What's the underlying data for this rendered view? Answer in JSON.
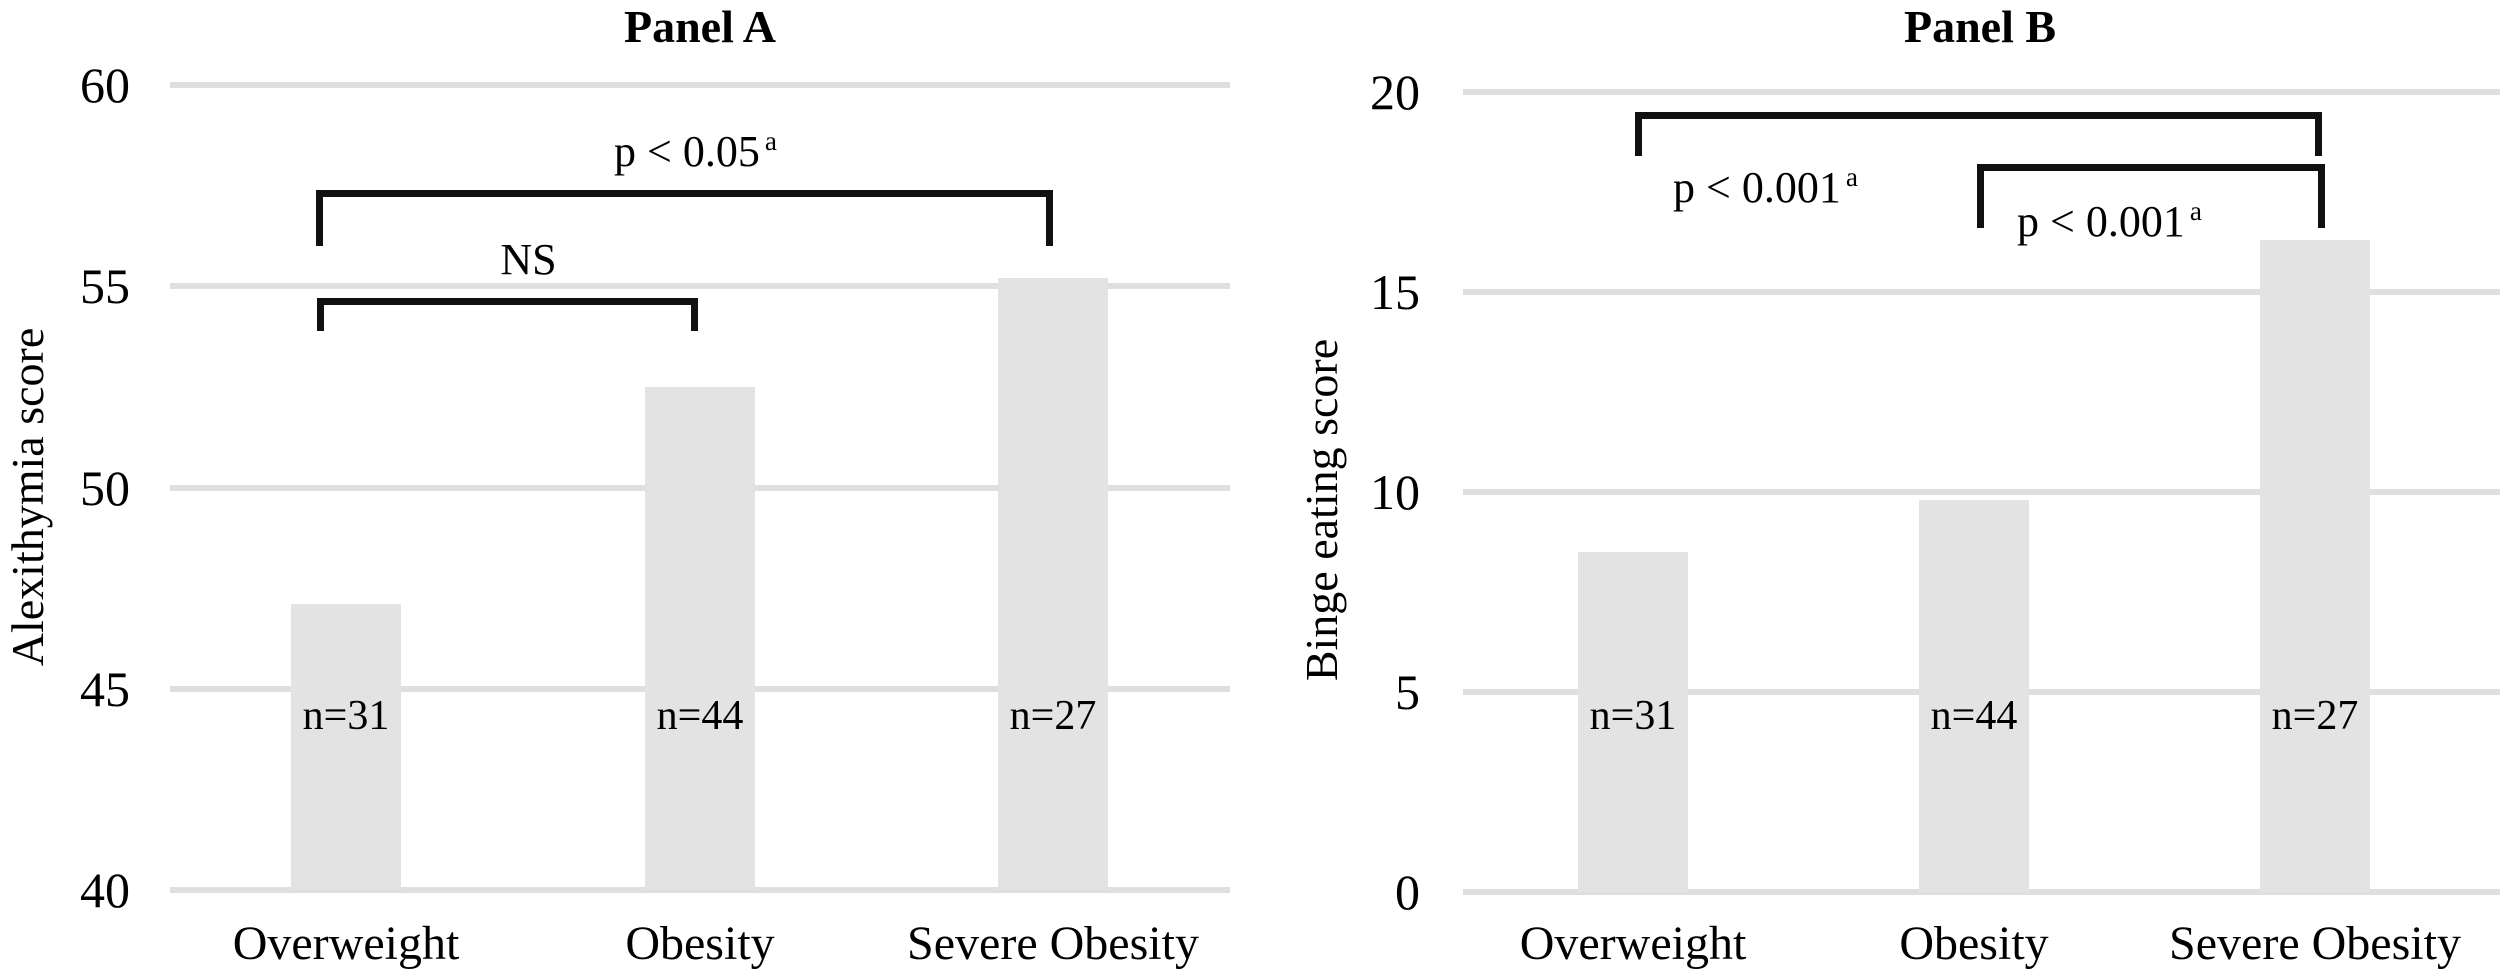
{
  "figure": {
    "background": "#ffffff"
  },
  "colors": {
    "bar_fill": "#e3e3e3",
    "gridline": "#dfdfdf",
    "bracket_line": "#111111",
    "text": "#000000"
  },
  "chart_data": {
    "type": "bar",
    "grid": true,
    "legend": "none",
    "panels": [
      {
        "title": "Panel A",
        "ylabel": "Alexithymia score",
        "categories": [
          "Overweight",
          "Obesity",
          "Severe Obesity"
        ],
        "values": [
          47.1,
          52.5,
          55.2
        ],
        "bar_labels": [
          "n=31",
          "n=44",
          "n=27"
        ],
        "sample_sizes": [
          31,
          44,
          27
        ],
        "ylim": [
          40,
          60
        ],
        "yticks": [
          40,
          45,
          50,
          55,
          60
        ],
        "annotations": [
          {
            "from": 0,
            "to": 2,
            "label": "p < 0.05",
            "sup": "a",
            "top_value": 57.4,
            "tick_value": 56.0,
            "label_placement": "above-center"
          },
          {
            "from": 0,
            "to": 1,
            "label": "NS",
            "sup": "",
            "top_value": 54.7,
            "tick_value": 53.9,
            "label_placement": "above-center"
          }
        ]
      },
      {
        "title": "Panel B",
        "ylabel": "Binge eating score",
        "categories": [
          "Overweight",
          "Obesity",
          "Severe Obesity"
        ],
        "values": [
          8.5,
          9.8,
          16.3
        ],
        "bar_labels": [
          "n=31",
          "n=44",
          "n=27"
        ],
        "sample_sizes": [
          31,
          44,
          27
        ],
        "ylim": [
          0,
          20
        ],
        "yticks": [
          0,
          5,
          10,
          15,
          20
        ],
        "annotations": [
          {
            "from": 0,
            "to": 2,
            "label": "p < 0.001",
            "sup": "a",
            "top_value": 19.5,
            "tick_value": 18.4,
            "label_placement": "below-left"
          },
          {
            "from": 1,
            "to": 2,
            "label": "p < 0.001",
            "sup": "a",
            "top_value": 18.2,
            "tick_value": 16.6,
            "label_placement": "below-left"
          }
        ]
      }
    ]
  }
}
